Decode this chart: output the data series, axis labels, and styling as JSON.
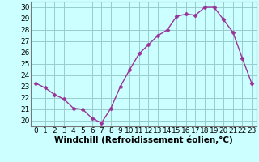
{
  "x": [
    0,
    1,
    2,
    3,
    4,
    5,
    6,
    7,
    8,
    9,
    10,
    11,
    12,
    13,
    14,
    15,
    16,
    17,
    18,
    19,
    20,
    21,
    22,
    23
  ],
  "y": [
    23.3,
    22.9,
    22.3,
    21.9,
    21.1,
    21.0,
    20.2,
    19.8,
    21.1,
    23.0,
    24.5,
    25.9,
    26.7,
    27.5,
    28.0,
    29.2,
    29.4,
    29.3,
    30.0,
    30.0,
    28.9,
    27.8,
    25.5,
    23.3
  ],
  "line_color": "#993399",
  "marker": "D",
  "marker_size": 2.5,
  "bg_color": "#ccffff",
  "grid_color": "#99cccc",
  "xlabel": "Windchill (Refroidissement éolien,°C)",
  "ylim": [
    19.5,
    30.5
  ],
  "yticks": [
    20,
    21,
    22,
    23,
    24,
    25,
    26,
    27,
    28,
    29,
    30
  ],
  "xticks": [
    0,
    1,
    2,
    3,
    4,
    5,
    6,
    7,
    8,
    9,
    10,
    11,
    12,
    13,
    14,
    15,
    16,
    17,
    18,
    19,
    20,
    21,
    22,
    23
  ],
  "tick_label_size": 6.5,
  "xlabel_size": 7.5,
  "xlim": [
    -0.5,
    23.5
  ]
}
